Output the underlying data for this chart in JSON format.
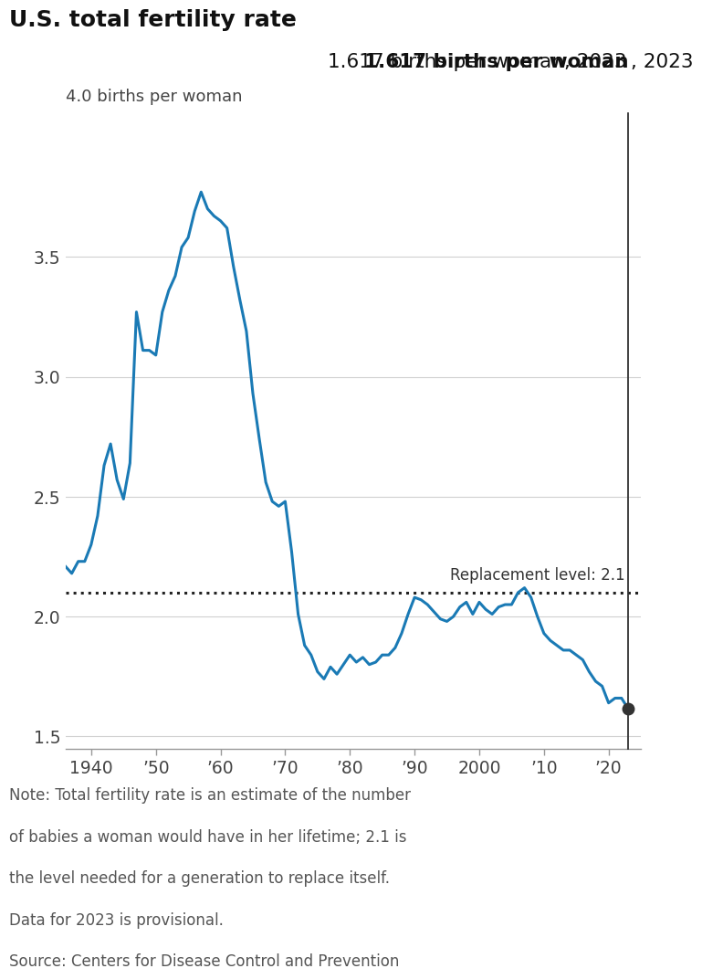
{
  "title": "U.S. total fertility rate",
  "subtitle_bold": "1.617 births per woman",
  "subtitle_normal": ", 2023",
  "ylabel": "4.0 births per woman",
  "replacement_label": "Replacement level: 2.1",
  "replacement_value": 2.1,
  "ylim": [
    1.45,
    4.1
  ],
  "xlim": [
    1936,
    2025
  ],
  "yticks": [
    1.5,
    2.0,
    2.5,
    3.0,
    3.5
  ],
  "xtick_labels": [
    "1940",
    "’50",
    "’60",
    "’70",
    "’80",
    "’90",
    "2000",
    "’10",
    "’20"
  ],
  "xtick_positions": [
    1940,
    1950,
    1960,
    1970,
    1980,
    1990,
    2000,
    2010,
    2020
  ],
  "note_line1": "Note: Total fertility rate is an estimate of the number",
  "note_line2": "of babies a woman would have in her lifetime; 2.1 is",
  "note_line3": "the level needed for a generation to replace itself.",
  "note_line4": "Data for 2023 is provisional.",
  "note_line5": "Source: Centers for Disease Control and Prevention",
  "line_color": "#1a7ab5",
  "dot_color": "#333333",
  "background_color": "#ffffff",
  "years": [
    1936,
    1937,
    1938,
    1939,
    1940,
    1941,
    1942,
    1943,
    1944,
    1945,
    1946,
    1947,
    1948,
    1949,
    1950,
    1951,
    1952,
    1953,
    1954,
    1955,
    1956,
    1957,
    1958,
    1959,
    1960,
    1961,
    1962,
    1963,
    1964,
    1965,
    1966,
    1967,
    1968,
    1969,
    1970,
    1971,
    1972,
    1973,
    1974,
    1975,
    1976,
    1977,
    1978,
    1979,
    1980,
    1981,
    1982,
    1983,
    1984,
    1985,
    1986,
    1987,
    1988,
    1989,
    1990,
    1991,
    1992,
    1993,
    1994,
    1995,
    1996,
    1997,
    1998,
    1999,
    2000,
    2001,
    2002,
    2003,
    2004,
    2005,
    2006,
    2007,
    2008,
    2009,
    2010,
    2011,
    2012,
    2013,
    2014,
    2015,
    2016,
    2017,
    2018,
    2019,
    2020,
    2021,
    2022,
    2023
  ],
  "values": [
    2.21,
    2.18,
    2.23,
    2.23,
    2.3,
    2.42,
    2.63,
    2.72,
    2.57,
    2.49,
    2.64,
    3.27,
    3.11,
    3.11,
    3.09,
    3.27,
    3.36,
    3.42,
    3.54,
    3.58,
    3.69,
    3.77,
    3.7,
    3.67,
    3.65,
    3.62,
    3.46,
    3.32,
    3.19,
    2.93,
    2.74,
    2.56,
    2.48,
    2.46,
    2.48,
    2.27,
    2.01,
    1.88,
    1.84,
    1.77,
    1.74,
    1.79,
    1.76,
    1.8,
    1.84,
    1.81,
    1.83,
    1.8,
    1.81,
    1.84,
    1.84,
    1.87,
    1.93,
    2.01,
    2.08,
    2.07,
    2.05,
    2.02,
    1.99,
    1.98,
    2.0,
    2.04,
    2.06,
    2.01,
    2.06,
    2.03,
    2.01,
    2.04,
    2.05,
    2.05,
    2.1,
    2.12,
    2.08,
    2.0,
    1.93,
    1.9,
    1.88,
    1.86,
    1.86,
    1.84,
    1.82,
    1.77,
    1.73,
    1.71,
    1.64,
    1.66,
    1.66,
    1.617
  ]
}
